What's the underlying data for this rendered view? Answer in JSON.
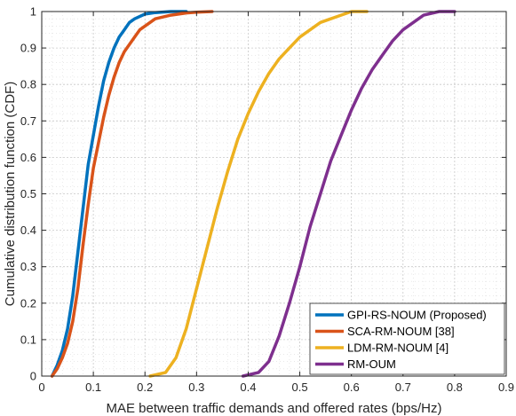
{
  "chart_data": {
    "type": "line",
    "xlabel": "MAE between traffic demands and offered rates (bps/Hz)",
    "ylabel": "Cumulative distribution function (CDF)",
    "xlim": [
      0,
      0.9
    ],
    "ylim": [
      0,
      1
    ],
    "xticks": [
      0,
      0.1,
      0.2,
      0.3,
      0.4,
      0.5,
      0.6,
      0.7,
      0.8,
      0.9
    ],
    "xtick_labels": [
      "0",
      "0.1",
      "0.2",
      "0.3",
      "0.4",
      "0.5",
      "0.6",
      "0.7",
      "0.8",
      "0.9"
    ],
    "yticks": [
      0,
      0.1,
      0.2,
      0.3,
      0.4,
      0.5,
      0.6,
      0.7,
      0.8,
      0.9,
      1
    ],
    "ytick_labels": [
      "0",
      "0.1",
      "0.2",
      "0.3",
      "0.4",
      "0.5",
      "0.6",
      "0.7",
      "0.8",
      "0.9",
      "1"
    ],
    "grid": "on (major and minor, dotted)",
    "legend_position": "bottom-right",
    "series": [
      {
        "name": "GPI-RS-NOUM (Proposed)",
        "color": "#0072BD",
        "x": [
          0.02,
          0.03,
          0.04,
          0.05,
          0.06,
          0.07,
          0.08,
          0.09,
          0.1,
          0.11,
          0.12,
          0.13,
          0.14,
          0.15,
          0.16,
          0.17,
          0.18,
          0.2,
          0.22,
          0.25,
          0.28
        ],
        "y": [
          0.0,
          0.03,
          0.07,
          0.13,
          0.22,
          0.34,
          0.46,
          0.58,
          0.66,
          0.74,
          0.81,
          0.86,
          0.9,
          0.93,
          0.95,
          0.97,
          0.98,
          0.993,
          0.997,
          1.0,
          1.0
        ]
      },
      {
        "name": "SCA-RM-NOUM [38]",
        "color": "#D95319",
        "x": [
          0.02,
          0.03,
          0.04,
          0.05,
          0.06,
          0.07,
          0.08,
          0.09,
          0.1,
          0.11,
          0.12,
          0.13,
          0.14,
          0.15,
          0.16,
          0.17,
          0.18,
          0.19,
          0.2,
          0.22,
          0.25,
          0.28,
          0.3,
          0.33
        ],
        "y": [
          0.0,
          0.02,
          0.05,
          0.09,
          0.15,
          0.24,
          0.36,
          0.47,
          0.57,
          0.64,
          0.71,
          0.77,
          0.82,
          0.86,
          0.89,
          0.91,
          0.93,
          0.95,
          0.96,
          0.98,
          0.99,
          0.996,
          0.998,
          1.0
        ]
      },
      {
        "name": "LDM-RM-NOUM [4]",
        "color": "#EDB120",
        "x": [
          0.21,
          0.24,
          0.26,
          0.28,
          0.3,
          0.32,
          0.34,
          0.36,
          0.38,
          0.4,
          0.42,
          0.44,
          0.46,
          0.48,
          0.5,
          0.52,
          0.54,
          0.56,
          0.58,
          0.6,
          0.63
        ],
        "y": [
          0.0,
          0.01,
          0.05,
          0.13,
          0.24,
          0.35,
          0.46,
          0.56,
          0.65,
          0.72,
          0.78,
          0.83,
          0.87,
          0.9,
          0.93,
          0.95,
          0.97,
          0.98,
          0.99,
          1.0,
          1.0
        ]
      },
      {
        "name": "RM-OUM",
        "color": "#7E2F8E",
        "x": [
          0.39,
          0.42,
          0.44,
          0.46,
          0.48,
          0.5,
          0.52,
          0.54,
          0.56,
          0.58,
          0.6,
          0.62,
          0.64,
          0.66,
          0.68,
          0.7,
          0.72,
          0.74,
          0.77,
          0.8
        ],
        "y": [
          0.0,
          0.01,
          0.04,
          0.11,
          0.2,
          0.3,
          0.41,
          0.5,
          0.59,
          0.66,
          0.73,
          0.79,
          0.84,
          0.88,
          0.92,
          0.95,
          0.97,
          0.99,
          1.0,
          1.0
        ]
      }
    ]
  }
}
